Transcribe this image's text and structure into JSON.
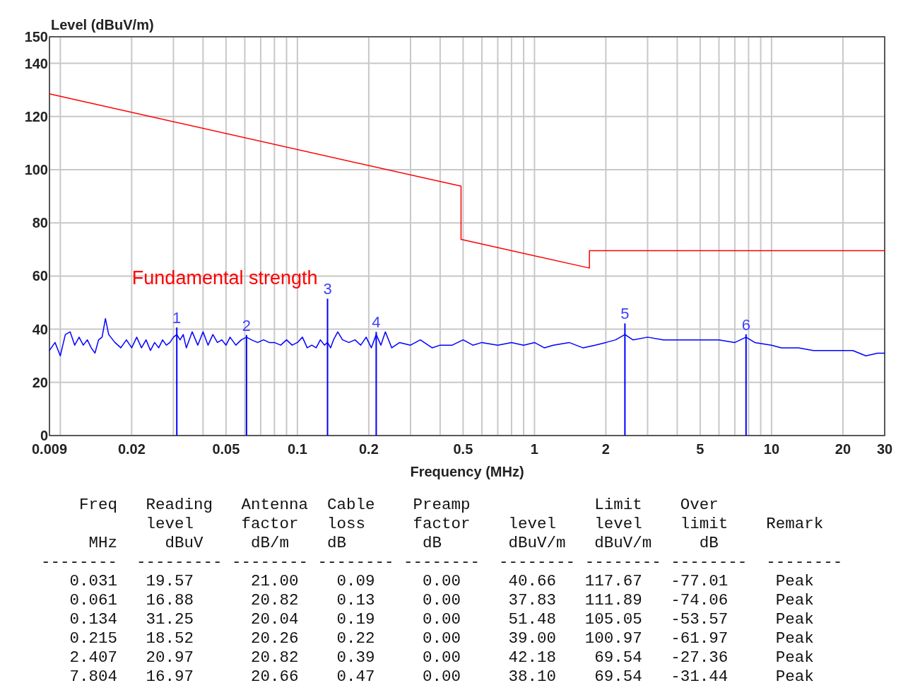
{
  "chart_data": {
    "type": "line",
    "ylabel": "Level (dBuV/m)",
    "xlabel": "Frequency (MHz)",
    "log": "x",
    "grid": true,
    "line_style": "solid",
    "xlim": [
      0.009,
      30
    ],
    "ylim": [
      0,
      150
    ],
    "xticks": [
      0.009,
      {
        "value": 0.01,
        "label": null
      },
      0.02,
      {
        "value": 0.03,
        "label": null
      },
      {
        "value": 0.04,
        "label": null
      },
      0.05,
      {
        "value": 0.06,
        "label": null
      },
      {
        "value": 0.07,
        "label": null
      },
      {
        "value": 0.08,
        "label": null
      },
      {
        "value": 0.09,
        "label": null
      },
      0.1,
      0.2,
      {
        "value": 0.3,
        "label": null
      },
      {
        "value": 0.4,
        "label": null
      },
      0.5,
      {
        "value": 0.6,
        "label": null
      },
      {
        "value": 0.7,
        "label": null
      },
      {
        "value": 0.8,
        "label": null
      },
      {
        "value": 0.9,
        "label": null
      },
      1,
      2,
      {
        "value": 3,
        "label": null
      },
      {
        "value": 4,
        "label": null
      },
      5,
      {
        "value": 6,
        "label": null
      },
      {
        "value": 7,
        "label": null
      },
      {
        "value": 8,
        "label": null
      },
      {
        "value": 9,
        "label": null
      },
      10,
      20,
      30
    ],
    "yticks": [
      0,
      20,
      40,
      60,
      80,
      100,
      120,
      140,
      150
    ],
    "series": [
      {
        "color": "#0000ff",
        "x": [
          0.009,
          0.0095,
          0.01,
          0.0105,
          0.011,
          0.0115,
          0.012,
          0.0125,
          0.013,
          0.0135,
          0.014,
          0.0145,
          0.015,
          0.0155,
          0.016,
          0.017,
          0.018,
          0.019,
          0.02,
          0.021,
          0.022,
          0.023,
          0.024,
          0.025,
          0.026,
          0.027,
          0.028,
          0.029,
          0.03,
          0.031,
          0.032,
          0.033,
          0.034,
          0.036,
          0.038,
          0.04,
          0.042,
          0.044,
          0.046,
          0.048,
          0.05,
          0.052,
          0.055,
          0.058,
          0.061,
          0.064,
          0.068,
          0.072,
          0.076,
          0.08,
          0.085,
          0.09,
          0.095,
          0.1,
          0.105,
          0.11,
          0.115,
          0.12,
          0.125,
          0.13,
          0.134,
          0.138,
          0.142,
          0.148,
          0.155,
          0.165,
          0.175,
          0.185,
          0.195,
          0.205,
          0.215,
          0.225,
          0.235,
          0.25,
          0.27,
          0.3,
          0.33,
          0.37,
          0.4,
          0.45,
          0.5,
          0.55,
          0.6,
          0.7,
          0.8,
          0.9,
          1,
          1.1,
          1.2,
          1.4,
          1.6,
          1.8,
          2,
          2.2,
          2.407,
          2.6,
          3,
          3.5,
          4,
          5,
          6,
          7,
          7.804,
          8.5,
          10,
          11,
          13,
          15,
          18,
          20,
          22,
          25,
          28,
          30
        ],
        "values": [
          32,
          35,
          30,
          38,
          39,
          34,
          37,
          34,
          36,
          33,
          31,
          36,
          37,
          44,
          38,
          35,
          33,
          36,
          33,
          37,
          33,
          36,
          32,
          35,
          33,
          36,
          34,
          35,
          37,
          38,
          36,
          38,
          33,
          39,
          34,
          39,
          34,
          38,
          35,
          36,
          34,
          37,
          34,
          36,
          37,
          36,
          35,
          36,
          35,
          35,
          34,
          36,
          34,
          35,
          37,
          33,
          34,
          33,
          36,
          34,
          35,
          33,
          36,
          39,
          36,
          35,
          36,
          34,
          37,
          33,
          38,
          34,
          39,
          33,
          35,
          34,
          36,
          33,
          34,
          34,
          36,
          34,
          35,
          34,
          35,
          34,
          35,
          33,
          34,
          35,
          33,
          34,
          35,
          36,
          38,
          36,
          37,
          36,
          36,
          36,
          36,
          35,
          37,
          35,
          34,
          33,
          33,
          32,
          32,
          32,
          32,
          30,
          31,
          31
        ]
      },
      {
        "type": "line",
        "color": "#ff0000",
        "x": [
          0.009,
          0.49,
          0.49,
          1.705,
          1.705,
          30
        ],
        "values": [
          128.5,
          93.8,
          73.8,
          63.0,
          69.54,
          69.54
        ]
      },
      {
        "type": "bar",
        "color": "#0000ff",
        "x": [
          0.031,
          0.061,
          0.134,
          0.215,
          2.407,
          7.804
        ],
        "values": [
          40.66,
          37.83,
          51.48,
          39.0,
          42.18,
          38.1
        ]
      }
    ],
    "annotations": [
      "Fundamental strength",
      {
        "text": "1",
        "x": 0.031,
        "y": 40.66
      },
      {
        "text": "2",
        "x": 0.061,
        "y": 37.83
      },
      {
        "text": "3",
        "x": 0.134,
        "y": 51.48
      },
      {
        "text": "4",
        "x": 0.215,
        "y": 39.0
      },
      {
        "text": "5",
        "x": 2.407,
        "y": 42.18
      },
      {
        "text": "6",
        "x": 7.804,
        "y": 38.1
      },
      "    Freq   Reading   Antenna  Cable    Preamp             Limit    Over",
      "           level     factor   loss     factor    level    level    limit    Remark",
      "     MHz     dBuV     dB/m    dB        dB       dBuV/m   dBuV/m     dB",
      "--------  --------- -------- -------- --------  -------- -------- --------  --------",
      "   0.031   19.57      21.00    0.09     0.00     40.66   117.67   -77.01     Peak",
      "   0.061   16.88      20.82    0.13     0.00     37.83   111.89   -74.06     Peak",
      "   0.134   31.25      20.04    0.19     0.00     51.48   105.05   -53.57     Peak",
      "   0.215   18.52      20.26    0.22     0.00     39.00   100.97   -61.97     Peak",
      "   2.407   20.97      20.82    0.39     0.00     42.18    69.54   -27.36     Peak",
      "   7.804   16.97      20.66    0.47     0.00     38.10    69.54   -31.44     Peak"
    ]
  }
}
